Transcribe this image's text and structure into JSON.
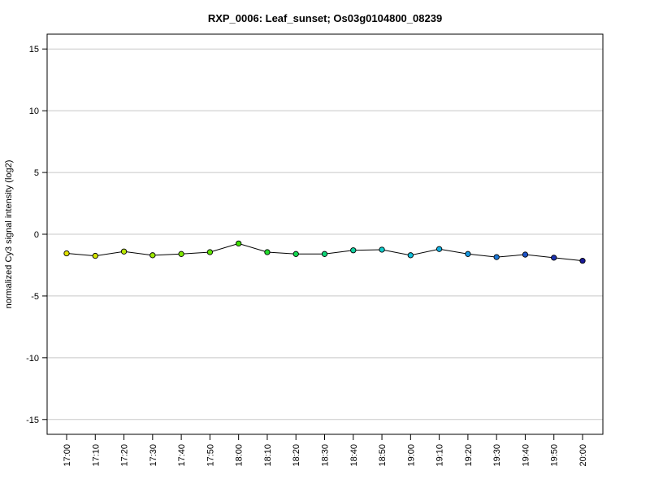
{
  "chart_data": {
    "type": "line",
    "title": "RXP_0006: Leaf_sunset; Os03g0104800_08239",
    "xlabel": "",
    "ylabel": "normalized Cy3 signal intensity (log2)",
    "ylim": [
      -16.2,
      16.2
    ],
    "yticks": [
      -15,
      -10,
      -5,
      0,
      5,
      10,
      15
    ],
    "grid": "horizontal",
    "categories": [
      "17:00",
      "17:10",
      "17:20",
      "17:30",
      "17:40",
      "17:50",
      "18:00",
      "18:10",
      "18:20",
      "18:30",
      "18:40",
      "18:50",
      "19:00",
      "19:10",
      "19:20",
      "19:30",
      "19:40",
      "19:50",
      "20:00"
    ],
    "values": [
      -1.55,
      -1.75,
      -1.4,
      -1.7,
      -1.6,
      -1.45,
      -0.75,
      -1.45,
      -1.6,
      -1.6,
      -1.3,
      -1.25,
      -1.7,
      -1.2,
      -1.6,
      -1.85,
      -1.65,
      -1.9,
      -2.15
    ],
    "point_colors": [
      "#e0e000",
      "#d4e400",
      "#b8e600",
      "#9ce800",
      "#80ea00",
      "#5fe600",
      "#3ee000",
      "#22dc2c",
      "#14d850",
      "#10d478",
      "#10d0a0",
      "#10cccc",
      "#10c0dc",
      "#12b0e0",
      "#1898e0",
      "#1c78d8",
      "#1e54c8",
      "#1e34b0",
      "#1a1a98"
    ]
  }
}
